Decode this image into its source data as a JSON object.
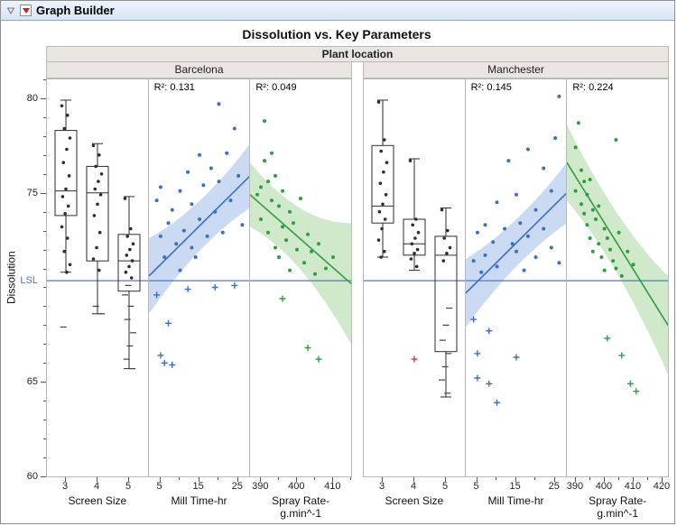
{
  "window": {
    "title": "Graph Builder"
  },
  "chart_data": {
    "type": "scatter",
    "title": "Dissolution vs. Key Parameters",
    "facet_label": "Plant location",
    "ylabel": "Dissolution",
    "ylim": [
      60,
      81
    ],
    "yticks": [
      60,
      65,
      75,
      80
    ],
    "lsl": {
      "label": "LSL",
      "value": 70.35,
      "color": "#4d79c9"
    },
    "colors": {
      "box": "#2e2e2e",
      "blue": "#3a6fc7",
      "blue_band": "#c9daf2",
      "green": "#2e9e40",
      "green_band": "#cfe9ca",
      "red": "#d93a2b"
    },
    "legend_position": "none",
    "grid": false,
    "groups": [
      {
        "name": "Barcelona",
        "panels": [
          {
            "kind": "box",
            "xlabel": "Screen Size",
            "xlim": [
              2.4,
              5.6
            ],
            "xticks": [
              3,
              4,
              5
            ],
            "boxes": [
              {
                "x": 3,
                "lo": 70.8,
                "q1": 73.8,
                "med": 75.1,
                "q3": 78.3,
                "hi": 79.9,
                "points": [
                  79.6,
                  79.1,
                  78.4,
                  77.9,
                  77.3,
                  76.6,
                  75.9,
                  75.2,
                  74.8,
                  74.3,
                  73.9,
                  73.2,
                  72.6,
                  71.9,
                  71.2,
                  70.8,
                  67.9
                ]
              },
              {
                "x": 4,
                "lo": 68.6,
                "q1": 71.4,
                "med": 75.0,
                "q3": 76.4,
                "hi": 77.6,
                "points": [
                  77.5,
                  77.0,
                  76.4,
                  76.0,
                  75.6,
                  75.2,
                  74.9,
                  74.4,
                  73.8,
                  72.9,
                  72.1,
                  71.5,
                  70.9,
                  69.0,
                  68.6
                ]
              },
              {
                "x": 5,
                "lo": 65.7,
                "q1": 69.8,
                "med": 71.4,
                "q3": 72.8,
                "hi": 74.8,
                "points": [
                  74.7,
                  73.1,
                  72.7,
                  72.3,
                  72.0,
                  71.7,
                  71.4,
                  71.1,
                  70.8,
                  70.5,
                  70.1,
                  69.6,
                  69.0,
                  68.3,
                  67.6,
                  66.9,
                  66.2,
                  65.7
                ]
              }
            ]
          },
          {
            "kind": "fit",
            "xlabel": "Mill Time-hr",
            "xlim": [
              2,
              28
            ],
            "xticks": [
              5,
              15,
              25
            ],
            "xminor": 5,
            "color_key": "blue",
            "band_key": "blue_band",
            "r2": "R²: 0.131",
            "fit": {
              "y1": 70.6,
              "y2": 75.9
            },
            "band": {
              "mid": 0.8,
              "left": 2.0,
              "right": 1.7
            },
            "dots": [
              [
                4,
                74.6
              ],
              [
                5,
                75.3
              ],
              [
                5,
                72.7
              ],
              [
                6,
                71.6
              ],
              [
                7,
                73.4
              ],
              [
                8,
                74.1
              ],
              [
                9,
                72.3
              ],
              [
                10,
                75.1
              ],
              [
                10,
                70.9
              ],
              [
                11,
                73.0
              ],
              [
                12,
                76.1
              ],
              [
                13,
                72.1
              ],
              [
                13,
                74.4
              ],
              [
                14,
                71.6
              ],
              [
                15,
                77.0
              ],
              [
                15,
                73.6
              ],
              [
                16,
                75.4
              ],
              [
                17,
                72.7
              ],
              [
                18,
                76.3
              ],
              [
                19,
                74.0
              ],
              [
                20,
                79.7
              ],
              [
                20,
                75.6
              ],
              [
                21,
                72.9
              ],
              [
                22,
                77.1
              ],
              [
                23,
                74.6
              ],
              [
                24,
                78.4
              ],
              [
                25,
                75.9
              ],
              [
                26,
                73.3
              ]
            ],
            "plus": [
              [
                4,
                69.6
              ],
              [
                5,
                66.4
              ],
              [
                6,
                66.0
              ],
              [
                7,
                68.1
              ],
              [
                8,
                65.9
              ],
              [
                12,
                69.9
              ],
              [
                19,
                70.0
              ],
              [
                24,
                70.1
              ]
            ]
          },
          {
            "kind": "fit",
            "xlabel": "Spray Rate-\ng.min^-1",
            "xlim": [
              387,
              415
            ],
            "xticks": [
              390,
              400,
              410
            ],
            "xminor": 5,
            "color_key": "green",
            "band_key": "green_band",
            "r2": "R²: 0.049",
            "fit": {
              "y1": 74.9,
              "y2": 70.2
            },
            "band": {
              "mid": 0.8,
              "left": 1.7,
              "right": 3.2
            },
            "dots": [
              [
                389,
                74.9
              ],
              [
                390,
                75.3
              ],
              [
                390,
                73.6
              ],
              [
                391,
                78.8
              ],
              [
                391,
                76.7
              ],
              [
                392,
                75.6
              ],
              [
                392,
                72.9
              ],
              [
                393,
                77.1
              ],
              [
                393,
                74.6
              ],
              [
                394,
                75.9
              ],
              [
                394,
                72.1
              ],
              [
                395,
                74.3
              ],
              [
                395,
                71.6
              ],
              [
                396,
                75.1
              ],
              [
                396,
                73.2
              ],
              [
                397,
                72.5
              ],
              [
                398,
                74.0
              ],
              [
                398,
                70.9
              ],
              [
                399,
                73.4
              ],
              [
                400,
                72.0
              ],
              [
                401,
                74.7
              ],
              [
                402,
                71.3
              ],
              [
                403,
                72.8
              ],
              [
                404,
                71.9
              ],
              [
                405,
                70.7
              ],
              [
                406,
                72.3
              ],
              [
                408,
                71.0
              ],
              [
                410,
                71.6
              ]
            ],
            "plus": [
              [
                396,
                69.4
              ],
              [
                403,
                66.8
              ],
              [
                406,
                66.2
              ]
            ]
          }
        ]
      },
      {
        "name": "Manchester",
        "panels": [
          {
            "kind": "box",
            "xlabel": "Screen Size",
            "xlim": [
              2.4,
              5.6
            ],
            "xticks": [
              3,
              4,
              5
            ],
            "boxes": [
              {
                "x": 3,
                "lo": 71.6,
                "q1": 73.4,
                "med": 74.3,
                "q3": 77.5,
                "hi": 79.9,
                "points": [
                  79.8,
                  77.8,
                  77.2,
                  76.6,
                  76.1,
                  75.5,
                  74.9,
                  74.4,
                  74.0,
                  73.6,
                  73.1,
                  72.5,
                  71.9,
                  71.6
                ]
              },
              {
                "x": 4,
                "lo": 70.9,
                "q1": 71.7,
                "med": 72.3,
                "q3": 73.6,
                "hi": 76.8,
                "points": [
                  76.7,
                  73.6,
                  73.3,
                  72.9,
                  72.6,
                  72.3,
                  72.0,
                  71.8,
                  71.5,
                  71.1
                ]
              },
              {
                "x": 5,
                "lo": 64.2,
                "q1": 66.6,
                "med": 71.7,
                "q3": 72.7,
                "hi": 74.2,
                "points": [
                  74.1,
                  73.0,
                  72.6,
                  72.1,
                  71.8,
                  71.4,
                  68.9,
                  68.0,
                  67.2,
                  66.5,
                  65.8,
                  65.1,
                  64.4,
                  64.2
                ]
              }
            ],
            "extra": [
              {
                "x": 4,
                "v": 66.2,
                "color": "red"
              }
            ]
          },
          {
            "kind": "fit",
            "xlabel": "Mill Time-hr",
            "xlim": [
              2,
              28
            ],
            "xticks": [
              5,
              15,
              25
            ],
            "xminor": 5,
            "color_key": "blue",
            "band_key": "blue_band",
            "r2": "R²: 0.145",
            "fit": {
              "y1": 69.7,
              "y2": 75.0
            },
            "band": {
              "mid": 0.8,
              "left": 1.8,
              "right": 1.6
            },
            "dots": [
              [
                4,
                71.4
              ],
              [
                5,
                72.9
              ],
              [
                6,
                70.8
              ],
              [
                7,
                73.3
              ],
              [
                7,
                71.7
              ],
              [
                9,
                72.4
              ],
              [
                10,
                74.5
              ],
              [
                10,
                71.1
              ],
              [
                12,
                73.1
              ],
              [
                13,
                76.7
              ],
              [
                14,
                72.3
              ],
              [
                15,
                74.9
              ],
              [
                15,
                71.9
              ],
              [
                16,
                73.4
              ],
              [
                17,
                70.9
              ],
              [
                18,
                77.3
              ],
              [
                18,
                72.7
              ],
              [
                20,
                74.1
              ],
              [
                20,
                71.6
              ],
              [
                22,
                76.3
              ],
              [
                22,
                73.1
              ],
              [
                24,
                75.1
              ],
              [
                24,
                72.1
              ],
              [
                25,
                77.9
              ],
              [
                26,
                80.1
              ],
              [
                26,
                71.3
              ]
            ],
            "plus": [
              [
                4,
                68.3
              ],
              [
                5,
                66.5
              ],
              [
                5,
                65.2
              ],
              [
                8,
                67.7
              ],
              [
                8,
                64.9
              ],
              [
                10,
                63.9
              ],
              [
                15,
                66.3
              ]
            ]
          },
          {
            "kind": "fit",
            "xlabel": "Spray Rate-\ng.min^-1",
            "xlim": [
              387,
              422
            ],
            "xticks": [
              390,
              400,
              410,
              420
            ],
            "xminor": 5,
            "color_key": "green",
            "band_key": "green_band",
            "r2": "R²: 0.224",
            "fit": {
              "y1": 76.6,
              "y2": 68.0
            },
            "band": {
              "mid": 0.9,
              "left": 2.0,
              "right": 2.6
            },
            "dots": [
              [
                390,
                77.4
              ],
              [
                390,
                75.1
              ],
              [
                391,
                78.7
              ],
              [
                392,
                76.2
              ],
              [
                392,
                74.4
              ],
              [
                393,
                75.6
              ],
              [
                393,
                73.9
              ],
              [
                394,
                74.9
              ],
              [
                394,
                73.3
              ],
              [
                395,
                75.7
              ],
              [
                395,
                72.6
              ],
              [
                396,
                74.1
              ],
              [
                396,
                71.9
              ],
              [
                397,
                73.6
              ],
              [
                398,
                74.3
              ],
              [
                398,
                72.3
              ],
              [
                399,
                71.6
              ],
              [
                400,
                73.1
              ],
              [
                400,
                70.9
              ],
              [
                401,
                72.6
              ],
              [
                402,
                72.0
              ],
              [
                403,
                71.4
              ],
              [
                404,
                77.8
              ],
              [
                404,
                71.0
              ],
              [
                405,
                72.9
              ],
              [
                406,
                70.6
              ],
              [
                408,
                71.9
              ],
              [
                410,
                71.2
              ]
            ],
            "plus": [
              [
                401,
                67.3
              ],
              [
                406,
                66.4
              ],
              [
                409,
                64.9
              ],
              [
                411,
                64.5
              ]
            ]
          }
        ]
      }
    ]
  }
}
